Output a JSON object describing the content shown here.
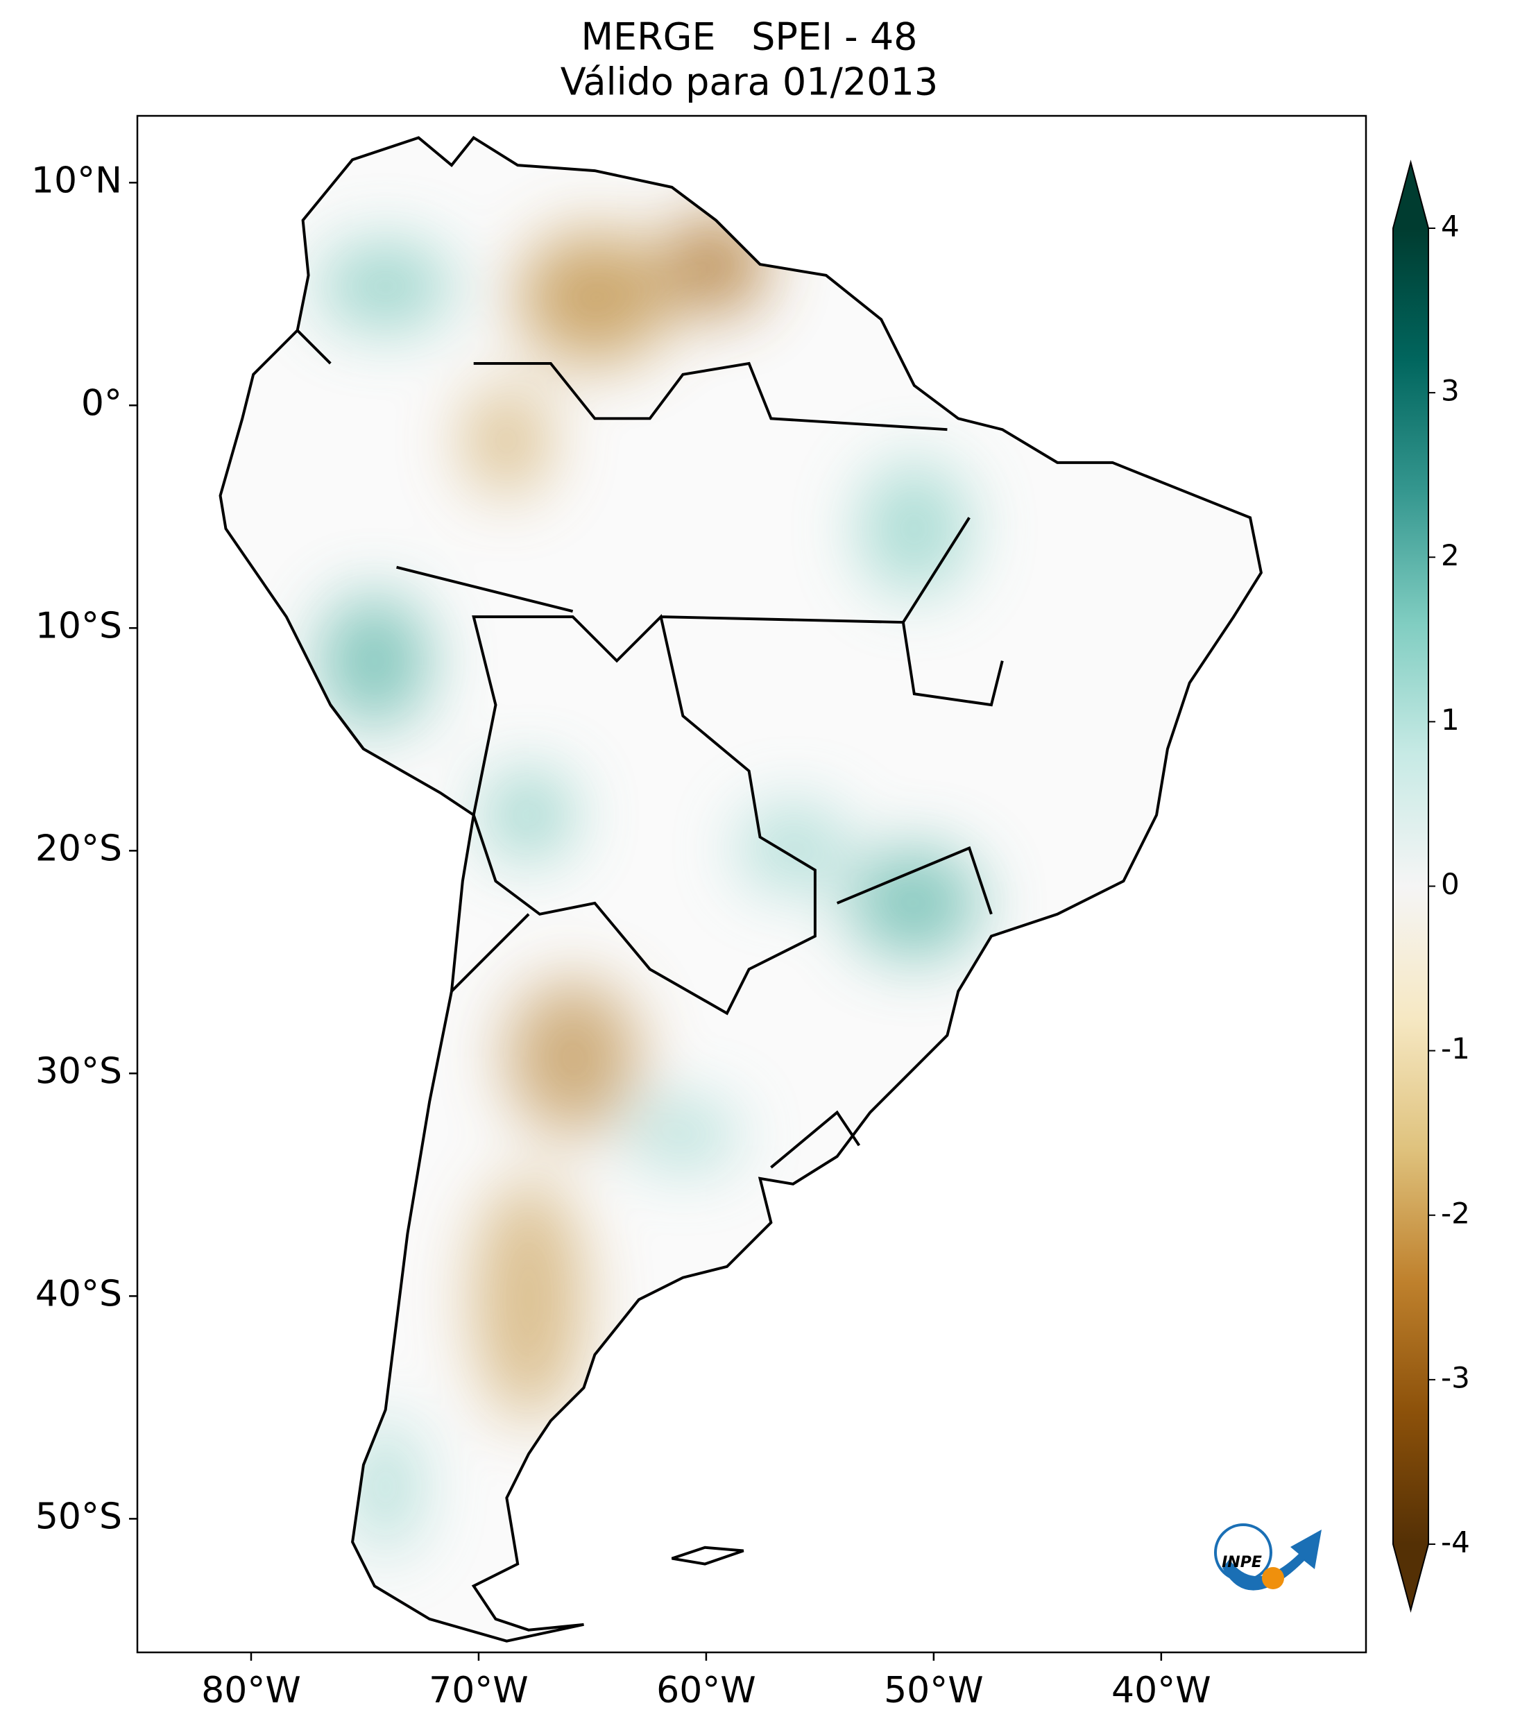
{
  "chart_data": {
    "type": "map",
    "title": "MERGE   SPEI - 48",
    "subtitle": "Válido para 01/2013",
    "xlim": [
      -85,
      -31
    ],
    "ylim": [
      -56,
      13
    ],
    "xticks": [
      {
        "value": -80,
        "label": "80°W"
      },
      {
        "value": -70,
        "label": "70°W"
      },
      {
        "value": -60,
        "label": "60°W"
      },
      {
        "value": -50,
        "label": "50°W"
      },
      {
        "value": -40,
        "label": "40°W"
      }
    ],
    "yticks": [
      {
        "value": 10,
        "label": "10°N"
      },
      {
        "value": 0,
        "label": "0°"
      },
      {
        "value": -10,
        "label": "10°S"
      },
      {
        "value": -20,
        "label": "20°S"
      },
      {
        "value": -30,
        "label": "30°S"
      },
      {
        "value": -40,
        "label": "40°S"
      },
      {
        "value": -50,
        "label": "50°S"
      }
    ],
    "colorbar": {
      "lim": [
        -4,
        4
      ],
      "ticks": [
        -4,
        -3,
        -2,
        -1,
        0,
        1,
        2,
        3,
        4
      ],
      "colors": [
        "#543005",
        "#8c510a",
        "#bf812d",
        "#dfc27d",
        "#f6e8c3",
        "#f5f5f5",
        "#c7eae5",
        "#80cdc1",
        "#35978f",
        "#01665e",
        "#003c30"
      ]
    },
    "logo_text": "INPE"
  }
}
